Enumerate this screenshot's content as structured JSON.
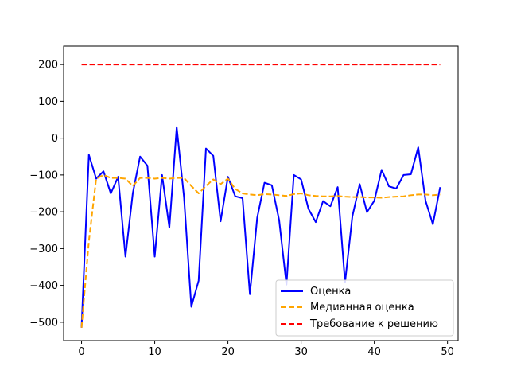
{
  "chart_data": {
    "type": "line",
    "title": "",
    "xlabel": "",
    "ylabel": "",
    "xlim": [
      -2.45,
      51.45
    ],
    "ylim": [
      -550,
      250
    ],
    "xticks": [
      0,
      10,
      20,
      30,
      40,
      50
    ],
    "yticks": [
      -500,
      -400,
      -300,
      -200,
      -100,
      0,
      100,
      200
    ],
    "grid": false,
    "legend_position": "lower-right",
    "x": [
      0,
      1,
      2,
      3,
      4,
      5,
      6,
      7,
      8,
      9,
      10,
      11,
      12,
      13,
      14,
      15,
      16,
      17,
      18,
      19,
      20,
      21,
      22,
      23,
      24,
      25,
      26,
      27,
      28,
      29,
      30,
      31,
      32,
      33,
      34,
      35,
      36,
      37,
      38,
      39,
      40,
      41,
      42,
      43,
      44,
      45,
      46,
      47,
      48,
      49
    ],
    "series": [
      {
        "name": "Оценка",
        "color": "#0000ff",
        "style": "solid",
        "values": [
          -515,
          -45,
          -110,
          -90,
          -150,
          -105,
          -322,
          -150,
          -50,
          -75,
          -322,
          -100,
          -243,
          30,
          -160,
          -458,
          -387,
          -28,
          -48,
          -226,
          -105,
          -158,
          -163,
          -424,
          -216,
          -121,
          -128,
          -223,
          -398,
          -100,
          -112,
          -192,
          -228,
          -171,
          -185,
          -133,
          -392,
          -213,
          -125,
          -201,
          -170,
          -86,
          -131,
          -137,
          -100,
          -98,
          -25,
          -170,
          -234,
          -133
        ]
      },
      {
        "name": "Медианная оценка",
        "color": "#ffa500",
        "style": "dashed",
        "values": [
          -515,
          -280,
          -110,
          -100,
          -108,
          -108,
          -110,
          -130,
          -108,
          -108,
          -110,
          -108,
          -110,
          -108,
          -108,
          -130,
          -150,
          -130,
          -112,
          -125,
          -110,
          -138,
          -150,
          -153,
          -155,
          -152,
          -153,
          -155,
          -157,
          -152,
          -150,
          -155,
          -157,
          -158,
          -158,
          -157,
          -159,
          -160,
          -160,
          -161,
          -161,
          -162,
          -160,
          -159,
          -158,
          -155,
          -153,
          -153,
          -155,
          -153
        ]
      },
      {
        "name": "Требование к решению",
        "color": "#ff0000",
        "style": "dashed",
        "values": [
          200,
          200,
          200,
          200,
          200,
          200,
          200,
          200,
          200,
          200,
          200,
          200,
          200,
          200,
          200,
          200,
          200,
          200,
          200,
          200,
          200,
          200,
          200,
          200,
          200,
          200,
          200,
          200,
          200,
          200,
          200,
          200,
          200,
          200,
          200,
          200,
          200,
          200,
          200,
          200,
          200,
          200,
          200,
          200,
          200,
          200,
          200,
          200,
          200,
          200
        ]
      }
    ]
  }
}
